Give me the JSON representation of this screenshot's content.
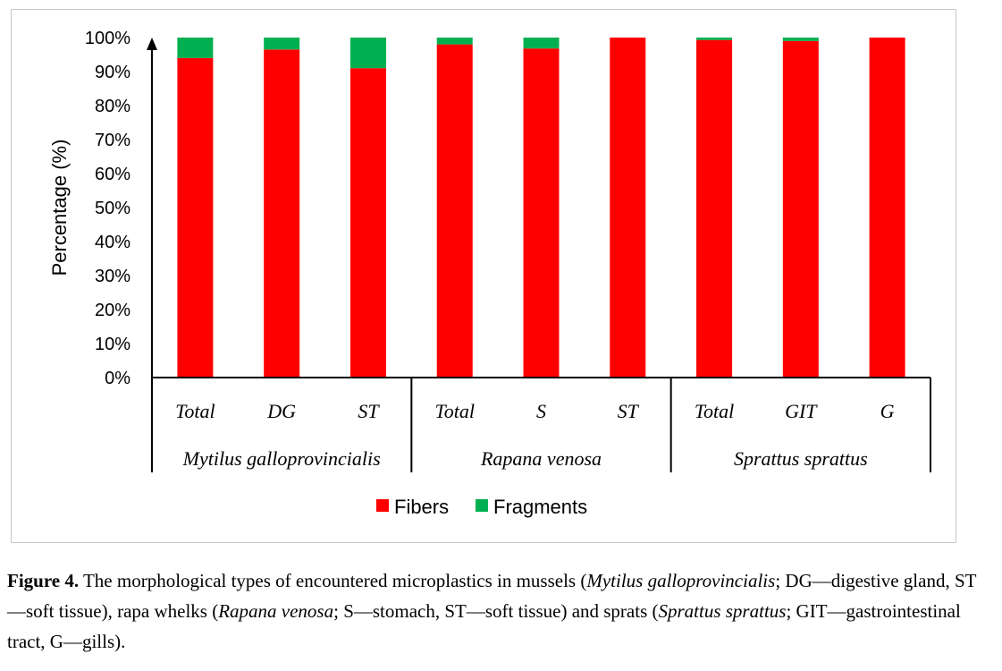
{
  "chart_data": {
    "type": "bar",
    "stacked": true,
    "title": "",
    "xlabel": "",
    "ylabel": "Percentage (%)",
    "ylim": [
      0,
      100
    ],
    "yticks": [
      "0%",
      "10%",
      "20%",
      "30%",
      "40%",
      "50%",
      "60%",
      "70%",
      "80%",
      "90%",
      "100%"
    ],
    "categories": [
      "Total",
      "DG",
      "ST",
      "Total",
      "S",
      "ST",
      "Total",
      "GIT",
      "G"
    ],
    "groups": [
      {
        "name": "Mytilus galloprovincialis",
        "size": 3
      },
      {
        "name": "Rapana venosa",
        "size": 3
      },
      {
        "name": "Sprattus sprattus",
        "size": 3
      }
    ],
    "series": [
      {
        "name": "Fibers",
        "color": "#ff0000",
        "values": [
          94,
          96.5,
          91,
          98,
          96.8,
          100,
          99.3,
          99,
          100
        ]
      },
      {
        "name": "Fragments",
        "color": "#00b050",
        "values": [
          6,
          3.5,
          9,
          2,
          3.2,
          0,
          0.7,
          1,
          0
        ]
      }
    ],
    "legend_position": "bottom",
    "grid": false
  },
  "caption": {
    "label": "Figure 4.",
    "segments": [
      {
        "text": " The morphological types of encountered microplastics in mussels (",
        "italic": false
      },
      {
        "text": "Mytilus galloprovincialis",
        "italic": true
      },
      {
        "text": "; DG—digestive gland, ST—soft tissue), rapa whelks (",
        "italic": false
      },
      {
        "text": "Rapana venosa",
        "italic": true
      },
      {
        "text": "; S—stomach, ST—soft tissue) and sprats (",
        "italic": false
      },
      {
        "text": "Sprattus sprattus",
        "italic": true
      },
      {
        "text": "; GIT—gastrointestinal tract, G—gills).",
        "italic": false
      }
    ]
  }
}
